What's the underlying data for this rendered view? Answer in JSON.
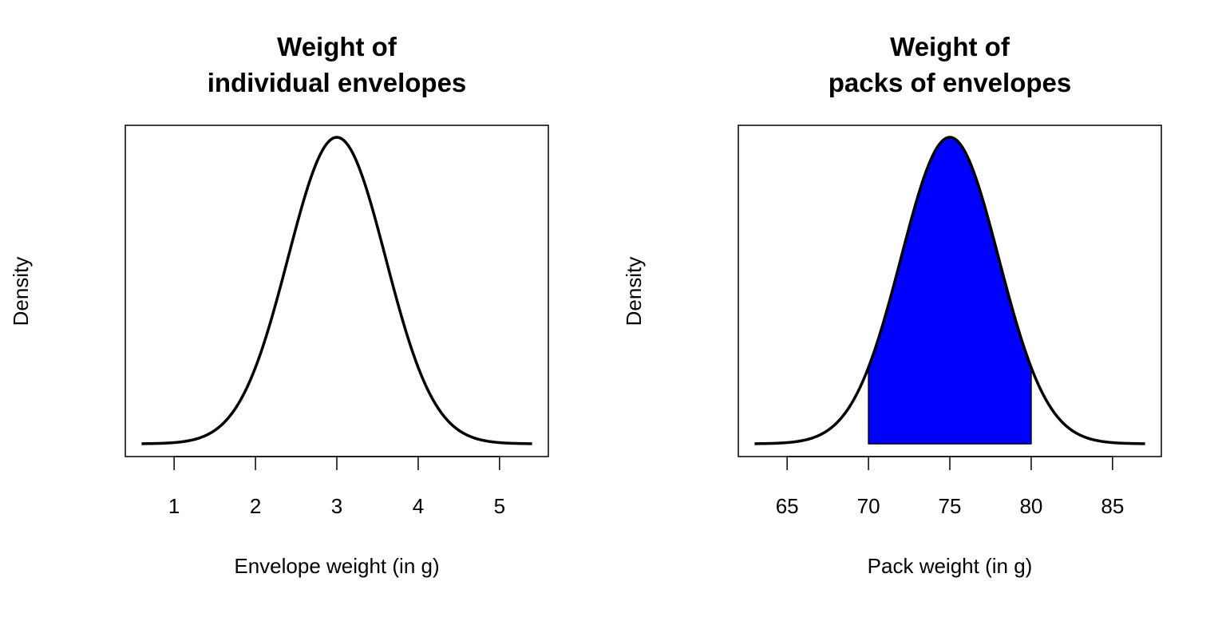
{
  "chart_data": [
    {
      "type": "line",
      "title_lines": [
        "Weight of",
        "individual envelopes"
      ],
      "xlabel": "Envelope weight (in g)",
      "ylabel": "Density",
      "distribution": "normal",
      "mean": 3,
      "sd": 0.6,
      "x_range": [
        0.6,
        5.4
      ],
      "xlim": [
        0.4,
        5.6
      ],
      "x_ticks": [
        1,
        2,
        3,
        4,
        5
      ],
      "y_ticks_shown": false,
      "line_color": "#000000",
      "shaded_region": null
    },
    {
      "type": "area",
      "title_lines": [
        "Weight of",
        "packs of envelopes"
      ],
      "xlabel": "Pack weight (in g)",
      "ylabel": "Density",
      "distribution": "normal",
      "mean": 75,
      "sd": 3,
      "x_range": [
        63,
        87
      ],
      "xlim": [
        62,
        88
      ],
      "x_ticks": [
        65,
        70,
        75,
        80,
        85
      ],
      "y_ticks_shown": false,
      "line_color": "#000000",
      "shaded_region": {
        "from": 70,
        "to": 80,
        "color": "#0000ff"
      }
    }
  ]
}
